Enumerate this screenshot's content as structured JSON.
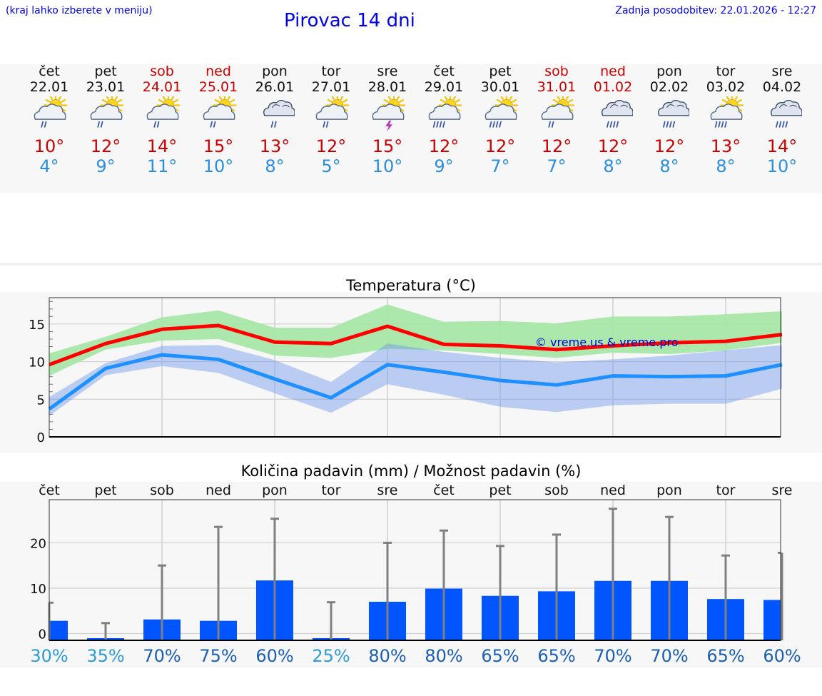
{
  "header": {
    "hint": "(kraj lahko izberete v meniju)",
    "title": "Pirovac 14 dni",
    "updated": "Zadnja posodobitev: 22.01.2026 - 12:27"
  },
  "days": [
    {
      "name": "čet",
      "date": "22.01",
      "weekend": false,
      "icon": "sun-cloud-rain-icon",
      "tmax": "10°",
      "tmin": "4°"
    },
    {
      "name": "pet",
      "date": "23.01",
      "weekend": false,
      "icon": "sun-cloud-rain-icon",
      "tmax": "12°",
      "tmin": "9°"
    },
    {
      "name": "sob",
      "date": "24.01",
      "weekend": true,
      "icon": "sun-cloud-rain-icon",
      "tmax": "14°",
      "tmin": "11°"
    },
    {
      "name": "ned",
      "date": "25.01",
      "weekend": true,
      "icon": "sun-cloud-rain-icon",
      "tmax": "15°",
      "tmin": "10°"
    },
    {
      "name": "pon",
      "date": "26.01",
      "weekend": false,
      "icon": "cloud-rain-icon",
      "tmax": "13°",
      "tmin": "8°"
    },
    {
      "name": "tor",
      "date": "27.01",
      "weekend": false,
      "icon": "sun-cloud-light-rain-icon",
      "tmax": "12°",
      "tmin": "5°"
    },
    {
      "name": "sre",
      "date": "28.01",
      "weekend": false,
      "icon": "sun-cloud-thunder-icon",
      "tmax": "15°",
      "tmin": "10°"
    },
    {
      "name": "čet",
      "date": "29.01",
      "weekend": false,
      "icon": "sun-cloud-heavy-rain-icon",
      "tmax": "12°",
      "tmin": "9°"
    },
    {
      "name": "pet",
      "date": "30.01",
      "weekend": false,
      "icon": "sun-cloud-heavy-rain-icon",
      "tmax": "12°",
      "tmin": "7°"
    },
    {
      "name": "sob",
      "date": "31.01",
      "weekend": true,
      "icon": "sun-cloud-light-rain-icon",
      "tmax": "12°",
      "tmin": "7°"
    },
    {
      "name": "ned",
      "date": "01.02",
      "weekend": true,
      "icon": "cloud-heavy-rain-icon",
      "tmax": "12°",
      "tmin": "8°"
    },
    {
      "name": "pon",
      "date": "02.02",
      "weekend": false,
      "icon": "cloud-heavy-rain-icon",
      "tmax": "12°",
      "tmin": "8°"
    },
    {
      "name": "tor",
      "date": "03.02",
      "weekend": false,
      "icon": "sun-cloud-heavy-rain-icon",
      "tmax": "13°",
      "tmin": "8°"
    },
    {
      "name": "sre",
      "date": "04.02",
      "weekend": false,
      "icon": "cloud-heavy-rain-icon",
      "tmax": "14°",
      "tmin": "10°"
    }
  ],
  "colors": {
    "max": "#ff0000",
    "min": "#1e90ff",
    "max_band": "#a8e6a8",
    "min_band": "#b0c8f0",
    "overlap": "#7fbfb0",
    "bar": "#0055ff",
    "error": "#808080"
  },
  "chart_data": [
    {
      "type": "line",
      "title": "Temperatura (°C)",
      "watermark": "© vreme.us & vreme.pro",
      "x": [
        0,
        1,
        2,
        3,
        4,
        5,
        6,
        7,
        8,
        9,
        10,
        11,
        12,
        13
      ],
      "ylim": [
        0,
        18.5
      ],
      "yticks": [
        "0",
        "5",
        "10",
        "15"
      ],
      "series": [
        {
          "name": "max",
          "values": [
            9.6,
            12.4,
            14.3,
            14.8,
            12.6,
            12.4,
            14.7,
            12.3,
            12.1,
            11.6,
            12.1,
            12.5,
            12.7,
            13.6
          ]
        },
        {
          "name": "max_low",
          "values": [
            8.1,
            11.6,
            12.8,
            13.0,
            10.8,
            10.5,
            11.7,
            11.5,
            11.0,
            10.5,
            11.2,
            11.0,
            11.5,
            12.5
          ]
        },
        {
          "name": "max_high",
          "values": [
            11.1,
            13.3,
            15.9,
            16.8,
            14.5,
            14.5,
            17.6,
            15.3,
            15.4,
            15.1,
            16.0,
            16.0,
            16.3,
            16.7
          ]
        },
        {
          "name": "min",
          "values": [
            3.7,
            9.1,
            10.9,
            10.3,
            7.7,
            5.2,
            9.6,
            8.6,
            7.5,
            6.9,
            8.1,
            8.0,
            8.1,
            9.6
          ]
        },
        {
          "name": "min_low",
          "values": [
            2.8,
            8.2,
            9.4,
            8.5,
            5.8,
            3.2,
            7.0,
            5.6,
            4.0,
            3.3,
            4.2,
            4.4,
            4.4,
            6.4
          ]
        },
        {
          "name": "min_high",
          "values": [
            5.3,
            9.8,
            12.1,
            12.2,
            10.2,
            7.3,
            12.4,
            11.3,
            10.5,
            9.9,
            10.3,
            10.8,
            11.5,
            12.2
          ]
        }
      ]
    },
    {
      "type": "bar",
      "title": "Količina padavin (mm) / Možnost padavin (%)",
      "categories": [
        "čet",
        "pet",
        "sob",
        "ned",
        "pon",
        "tor",
        "sre",
        "čet",
        "pet",
        "sob",
        "ned",
        "pon",
        "tor",
        "sre"
      ],
      "ylim": [
        -1.5,
        29.5
      ],
      "yticks": [
        "0",
        "10",
        "20"
      ],
      "values": [
        2.8,
        0.0,
        3.1,
        2.8,
        11.7,
        0.0,
        7.0,
        9.9,
        8.3,
        9.3,
        11.6,
        11.6,
        7.6,
        7.4
      ],
      "error_high": [
        6.8,
        2.3,
        15.0,
        23.5,
        25.3,
        6.9,
        20.0,
        22.7,
        19.3,
        21.8,
        27.5,
        25.7,
        17.2,
        17.8
      ],
      "probability": [
        "30%",
        "35%",
        "70%",
        "75%",
        "60%",
        "25%",
        "80%",
        "80%",
        "65%",
        "65%",
        "70%",
        "70%",
        "65%",
        "60%"
      ],
      "probability_colors": [
        "#2e9bd6",
        "#2e9bd6",
        "#1a5fb4",
        "#1a5fb4",
        "#1a5fb4",
        "#2e9bd6",
        "#1a5fb4",
        "#1a5fb4",
        "#1a5fb4",
        "#1a5fb4",
        "#1a5fb4",
        "#1a5fb4",
        "#1a5fb4",
        "#1a5fb4"
      ]
    }
  ]
}
